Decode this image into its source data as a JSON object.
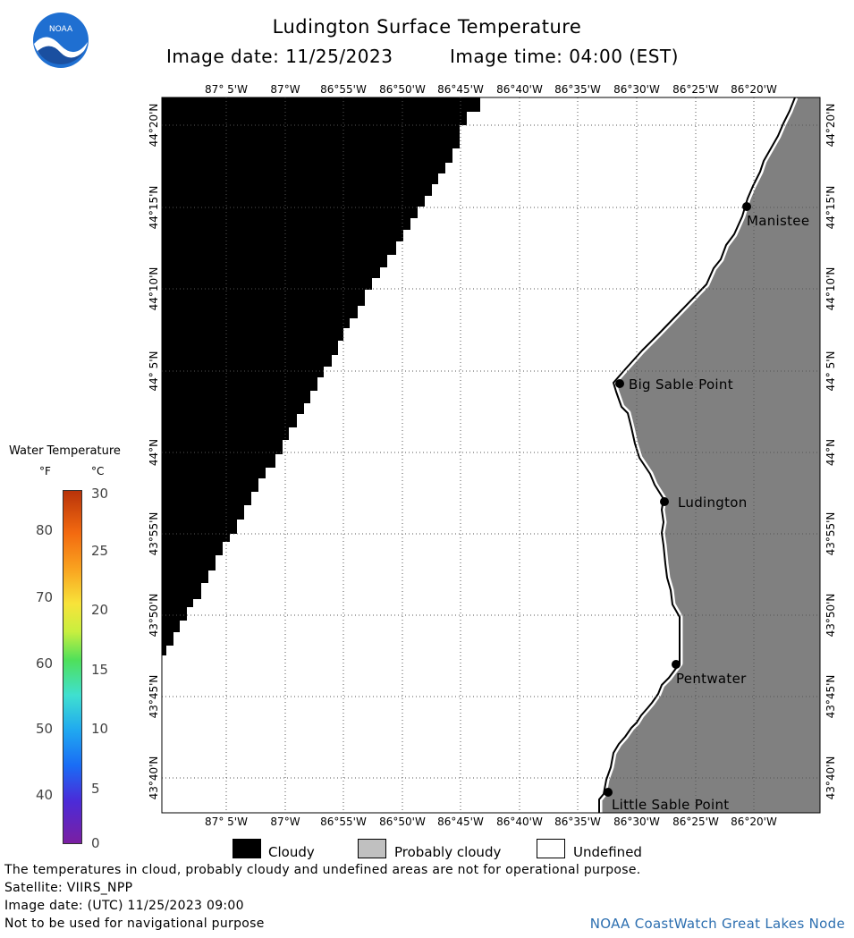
{
  "header": {
    "title": "Ludington Surface Temperature",
    "image_date": "Image date: 11/25/2023",
    "image_time": "Image time: 04:00 (EST)"
  },
  "logo": {
    "text": "NOAA",
    "icon": "noaa-logo-icon"
  },
  "map": {
    "lon_ticks": [
      "87° 5'W",
      "87°W",
      "86°55'W",
      "86°50'W",
      "86°45'W",
      "86°40'W",
      "86°35'W",
      "86°30'W",
      "86°25'W",
      "86°20'W"
    ],
    "lat_ticks": [
      "44°20'N",
      "44°15'N",
      "44°10'N",
      "44° 5'N",
      "44°N",
      "43°55'N",
      "43°50'N",
      "43°45'N",
      "43°40'N"
    ],
    "places": {
      "manistee": "Manistee",
      "big_sable_point": "Big Sable Point",
      "ludington": "Ludington",
      "pentwater": "Pentwater",
      "little_sable_point": "Little Sable Point"
    },
    "colors": {
      "cloudy": "#000000",
      "land": "#808080",
      "undefined": "#ffffff",
      "grid": "#555555"
    }
  },
  "legend": {
    "title": "Water Temperature",
    "unit_f": "°F",
    "unit_c": "°C",
    "f_values": [
      "80",
      "70",
      "60",
      "50",
      "40"
    ],
    "c_values": [
      "30",
      "25",
      "20",
      "15",
      "10",
      "5",
      "0"
    ],
    "cloudy": "Cloudy",
    "probably_cloudy": "Probably cloudy",
    "undefined": "Undefined",
    "colors": {
      "cloudy": "#000000",
      "probably_cloudy": "#c0c0c0",
      "undefined": "#ffffff"
    }
  },
  "footer": {
    "note": "The temperatures in cloud, probably cloudy and undefined areas are not for operational purpose.",
    "satellite": "Satellite: VIIRS_NPP",
    "utc_date": "Image date: (UTC) 11/25/2023  09:00",
    "nav_warning": "Not to be used for navigational purpose",
    "credit": "NOAA CoastWatch Great Lakes Node"
  }
}
